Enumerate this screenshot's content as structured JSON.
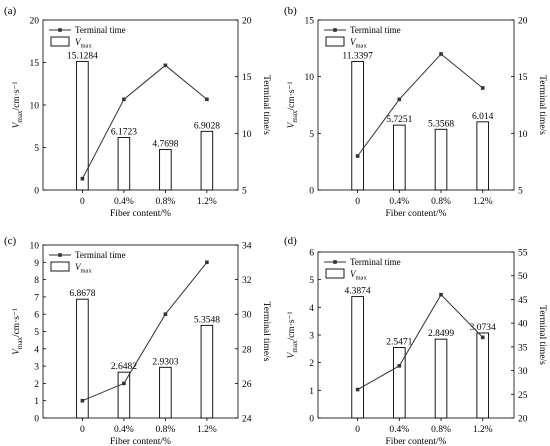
{
  "chart_data": [
    {
      "panel": "(a)",
      "type": "bar",
      "categories": [
        "0",
        "0.4%",
        "0.8%",
        "1.2%"
      ],
      "xlabel": "Fiber content/%",
      "ylabel_main": "V",
      "ylabel_sub": "max",
      "ylabel_unit": "/cm·s⁻¹",
      "y2label": "Terminal time/s",
      "ylim": [
        0,
        20
      ],
      "yticks": [
        "0",
        "5",
        "10",
        "15",
        "20"
      ],
      "y2lim": [
        5,
        20
      ],
      "y2ticks": [
        "5",
        "10",
        "15",
        "20"
      ],
      "bars": {
        "name_main": "V",
        "name_sub": "max",
        "values": [
          15.1284,
          6.1723,
          4.7698,
          6.9028
        ],
        "labels": [
          "15.1284",
          "6.1723",
          "4.7698",
          "6.9028"
        ]
      },
      "line": {
        "name": "Terminal time",
        "values": [
          6.0,
          13.0,
          16.0,
          13.0
        ]
      },
      "legend_position": "top-left"
    },
    {
      "panel": "(b)",
      "type": "bar",
      "categories": [
        "0",
        "0.4%",
        "0.8%",
        "1.2%"
      ],
      "xlabel": "Fiber content/%",
      "ylabel_main": "V",
      "ylabel_sub": "max",
      "ylabel_unit": "/cm·s⁻¹",
      "y2label": "Terminal time/s",
      "ylim": [
        0,
        15
      ],
      "yticks": [
        "0",
        "5",
        "10",
        "15"
      ],
      "y2lim": [
        5,
        20
      ],
      "y2ticks": [
        "5",
        "10",
        "15",
        "20"
      ],
      "bars": {
        "name_main": "V",
        "name_sub": "max",
        "values": [
          11.3397,
          5.7251,
          5.3568,
          6.014
        ],
        "labels": [
          "11.3397",
          "5.7251",
          "5.3568",
          "6.014"
        ]
      },
      "line": {
        "name": "Terminal time",
        "values": [
          8.0,
          13.0,
          17.0,
          14.0
        ]
      },
      "legend_position": "top-left"
    },
    {
      "panel": "(c)",
      "type": "bar",
      "categories": [
        "0",
        "0.4%",
        "0.8%",
        "1.2%"
      ],
      "xlabel": "Fiber content/%",
      "ylabel_main": "V",
      "ylabel_sub": "max",
      "ylabel_unit": "/cm·s⁻¹",
      "y2label": "Terminal time/s",
      "ylim": [
        0,
        10
      ],
      "yticks": [
        "0",
        "1",
        "2",
        "3",
        "4",
        "5",
        "6",
        "7",
        "8",
        "9",
        "10"
      ],
      "y2lim": [
        24,
        34
      ],
      "y2ticks": [
        "24",
        "26",
        "28",
        "30",
        "32",
        "34"
      ],
      "bars": {
        "name_main": "V",
        "name_sub": "max",
        "values": [
          6.8678,
          2.6482,
          2.9303,
          5.3548
        ],
        "labels": [
          "6.8678",
          "2.6482",
          "2.9303",
          "5.3548"
        ]
      },
      "line": {
        "name": "Terminal time",
        "values": [
          25.0,
          26.0,
          30.0,
          33.0
        ]
      },
      "legend_position": "top-left"
    },
    {
      "panel": "(d)",
      "type": "bar",
      "categories": [
        "0",
        "0.4%",
        "0.8%",
        "1.2%"
      ],
      "xlabel": "Fiber content/%",
      "ylabel_main": "V",
      "ylabel_sub": "max",
      "ylabel_unit": "/cm·s⁻¹",
      "y2label": "Terminal time/s",
      "ylim": [
        0,
        6
      ],
      "yticks": [
        "0",
        "1",
        "2",
        "3",
        "4",
        "5",
        "6"
      ],
      "y2lim": [
        20,
        55
      ],
      "y2ticks": [
        "20",
        "25",
        "30",
        "35",
        "40",
        "45",
        "50",
        "55"
      ],
      "bars": {
        "name_main": "V",
        "name_sub": "max",
        "values": [
          4.3874,
          2.5471,
          2.8499,
          3.0734
        ],
        "labels": [
          "4.3874",
          "2.5471",
          "2.8499",
          "3.0734"
        ]
      },
      "line": {
        "name": "Terminal time",
        "values": [
          26.0,
          31.0,
          46.0,
          37.0
        ]
      },
      "legend_position": "top-left"
    }
  ]
}
